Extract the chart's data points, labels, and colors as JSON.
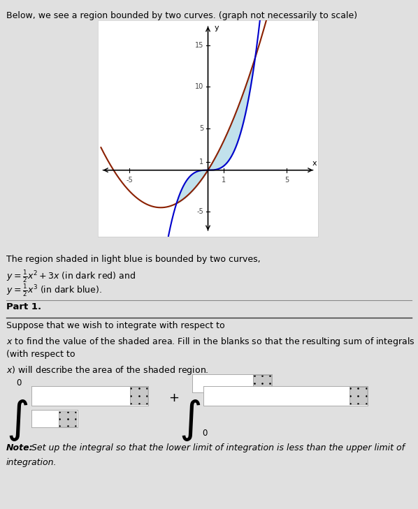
{
  "bg_color": "#e0e0e0",
  "plot_bg": "#ffffff",
  "dark_red": "#8B2000",
  "dark_blue": "#0000CC",
  "shade_color": "#ADD8E6",
  "shade_alpha": 0.75,
  "xlim": [
    -7,
    7
  ],
  "ylim": [
    -8,
    18
  ],
  "x_tick_vals": [
    -5,
    1,
    5
  ],
  "y_tick_vals": [
    -5,
    1,
    5,
    10,
    15
  ]
}
